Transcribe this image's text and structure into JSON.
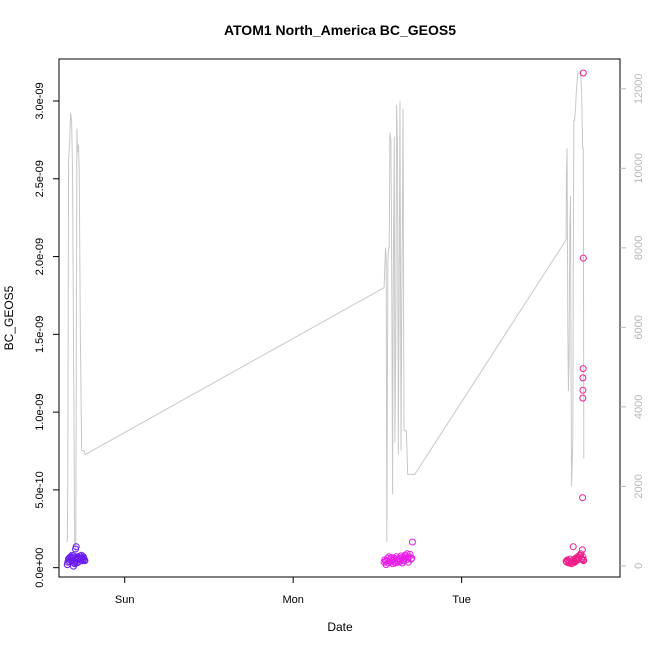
{
  "chart_data": {
    "type": "scatter",
    "title": "ATOM1 North_America BC_GEOS5",
    "xlabel": "Date",
    "ylabel": "BC_GEOS5",
    "x_ticks": [
      "Sun",
      "Mon",
      "Tue"
    ],
    "x_tick_days": [
      1,
      2,
      3
    ],
    "xlim_days": [
      0.61,
      3.94
    ],
    "y_ticks": [
      "0.0e+00",
      "5.0e-10",
      "1.0e-09",
      "1.5e-09",
      "2.0e-09",
      "2.5e-09",
      "3.0e-09"
    ],
    "y_tick_values": [
      0,
      5e-10,
      1e-09,
      1.5e-09,
      2e-09,
      2.5e-09,
      3e-09
    ],
    "ylim": [
      -6e-11,
      3.27e-09
    ],
    "y2_ticks": [
      "0",
      "2000",
      "4000",
      "6000",
      "8000",
      "10000",
      "12000"
    ],
    "y2_tick_values": [
      0,
      2000,
      4000,
      6000,
      8000,
      10000,
      12000
    ],
    "y2lim": [
      -280,
      12750
    ],
    "grid": false,
    "colors": {
      "secondary_line": "#c8c8c8",
      "right_axis": "#b8b8b8",
      "purple": "#6a1bf0",
      "magenta": "#e81ee8",
      "pink": "#f01e8c"
    },
    "series": [
      {
        "axis": "right",
        "style": "line",
        "x": [
          0.659,
          0.662,
          0.667,
          0.673,
          0.679,
          0.685,
          0.69,
          0.696,
          0.703,
          0.71,
          0.716,
          0.72,
          0.725,
          0.73,
          0.737,
          0.745,
          0.752,
          0.758,
          0.765,
          2.54,
          2.548,
          2.552,
          2.556,
          2.562,
          2.566,
          2.57,
          2.574,
          2.58,
          2.584,
          2.59,
          2.594,
          2.6,
          2.604,
          2.61,
          2.614,
          2.62,
          2.624,
          2.63,
          2.634,
          2.64,
          2.646,
          2.652,
          2.658,
          2.664,
          2.672,
          2.68,
          2.686,
          2.69,
          2.72,
          2.722,
          3.62,
          3.622,
          3.626,
          3.63,
          3.634,
          3.638,
          3.642,
          3.646,
          3.652,
          3.66,
          3.666,
          3.67,
          3.676,
          3.682,
          3.69,
          3.698,
          3.705,
          3.712,
          3.718,
          3.722,
          3.725
        ],
        "values": [
          600,
          2300,
          10200,
          10600,
          11400,
          11200,
          10000,
          5700,
          600,
          300,
          11000,
          10400,
          10600,
          10000,
          5700,
          2900,
          2900,
          2900,
          2800,
          7000,
          8000,
          7700,
          600,
          7700,
          8000,
          8000,
          10900,
          10700,
          8000,
          1800,
          7000,
          10800,
          3100,
          6100,
          11600,
          10300,
          2800,
          7800,
          11700,
          2900,
          7400,
          11500,
          3400,
          3400,
          3400,
          2300,
          2300,
          2300,
          2300,
          2300,
          8200,
          9800,
          10500,
          6000,
          4400,
          5200,
          8500,
          9300,
          2000,
          3100,
          11200,
          11200,
          11500,
          12000,
          12400,
          12400,
          12400,
          12000,
          10500,
          10500,
          2700
        ]
      },
      {
        "name": "",
        "axis": "left",
        "style": "points",
        "color": "#6a1bf0",
        "x": [
          0.659,
          0.662,
          0.666,
          0.67,
          0.673,
          0.676,
          0.679,
          0.682,
          0.685,
          0.688,
          0.69,
          0.693,
          0.696,
          0.699,
          0.701,
          0.703,
          0.706,
          0.708,
          0.71,
          0.713,
          0.716,
          0.719,
          0.722,
          0.725,
          0.728,
          0.731,
          0.734,
          0.737,
          0.74,
          0.743,
          0.746,
          0.749,
          0.752,
          0.755,
          0.758,
          0.761,
          0.764,
          0.696,
          0.712
        ],
        "values": [
          2e-11,
          3.5e-11,
          5.5e-11,
          4e-11,
          6.5e-11,
          5e-11,
          7e-11,
          4.5e-11,
          6e-11,
          8e-11,
          5e-11,
          6.5e-11,
          7.5e-11,
          4e-11,
          3e-11,
          2.5e-11,
          5.5e-11,
          1.2e-10,
          4.5e-11,
          6e-11,
          3e-11,
          5e-11,
          7e-11,
          6.5e-11,
          5.5e-11,
          4e-11,
          7.5e-11,
          6e-11,
          5e-11,
          8e-11,
          6.5e-11,
          4.5e-11,
          5.5e-11,
          7e-11,
          6e-11,
          5e-11,
          4.5e-11,
          1e-11,
          1.35e-10
        ]
      },
      {
        "name": "",
        "axis": "left",
        "style": "points",
        "color": "#e81ee8",
        "x": [
          2.54,
          2.544,
          2.548,
          2.552,
          2.556,
          2.56,
          2.564,
          2.568,
          2.572,
          2.576,
          2.58,
          2.584,
          2.588,
          2.592,
          2.596,
          2.6,
          2.604,
          2.608,
          2.612,
          2.616,
          2.62,
          2.624,
          2.628,
          2.632,
          2.636,
          2.64,
          2.644,
          2.648,
          2.652,
          2.656,
          2.66,
          2.664,
          2.668,
          2.672,
          2.676,
          2.68,
          2.684,
          2.69,
          2.694,
          2.7,
          2.704,
          2.708
        ],
        "values": [
          3.5e-11,
          5e-11,
          4e-11,
          2e-11,
          4.5e-11,
          6e-11,
          3e-11,
          7e-11,
          4e-11,
          5.5e-11,
          3.5e-11,
          6.5e-11,
          4.5e-11,
          2.5e-11,
          5e-11,
          6e-11,
          4e-11,
          3e-11,
          7e-11,
          5.5e-11,
          4.5e-11,
          3.5e-11,
          6e-11,
          5e-11,
          4e-11,
          7.5e-11,
          6.5e-11,
          3e-11,
          5.5e-11,
          4.5e-11,
          6e-11,
          8e-11,
          7e-11,
          5e-11,
          9e-11,
          6.5e-11,
          3.5e-11,
          7e-11,
          8.5e-11,
          5.5e-11,
          6e-11,
          1.65e-10
        ]
      },
      {
        "name": "",
        "axis": "left",
        "style": "points",
        "color": "#f01e8c",
        "x": [
          3.62,
          3.624,
          3.628,
          3.632,
          3.636,
          3.64,
          3.644,
          3.648,
          3.652,
          3.656,
          3.66,
          3.664,
          3.668,
          3.672,
          3.676,
          3.68,
          3.684,
          3.688,
          3.692,
          3.696,
          3.7,
          3.704,
          3.708,
          3.712,
          3.716,
          3.72,
          3.724,
          3.662,
          3.716,
          3.718,
          3.719,
          3.72,
          3.72,
          3.721,
          3.722,
          3.722,
          3.723
        ],
        "values": [
          4e-11,
          3.5e-11,
          5e-11,
          4.5e-11,
          3e-11,
          4e-11,
          5.5e-11,
          3.5e-11,
          2.5e-11,
          4.5e-11,
          3e-11,
          5e-11,
          4e-11,
          3.5e-11,
          6e-11,
          4.5e-11,
          5.5e-11,
          7e-11,
          5e-11,
          6.5e-11,
          8e-11,
          7.5e-11,
          9e-11,
          6e-11,
          5.5e-11,
          7e-11,
          4.5e-11,
          1.35e-10,
          1.15e-10,
          4.5e-10,
          1.09e-09,
          1.14e-09,
          1.22e-09,
          1.28e-09,
          1.99e-09,
          3.18e-09,
          5e-11
        ]
      }
    ]
  }
}
